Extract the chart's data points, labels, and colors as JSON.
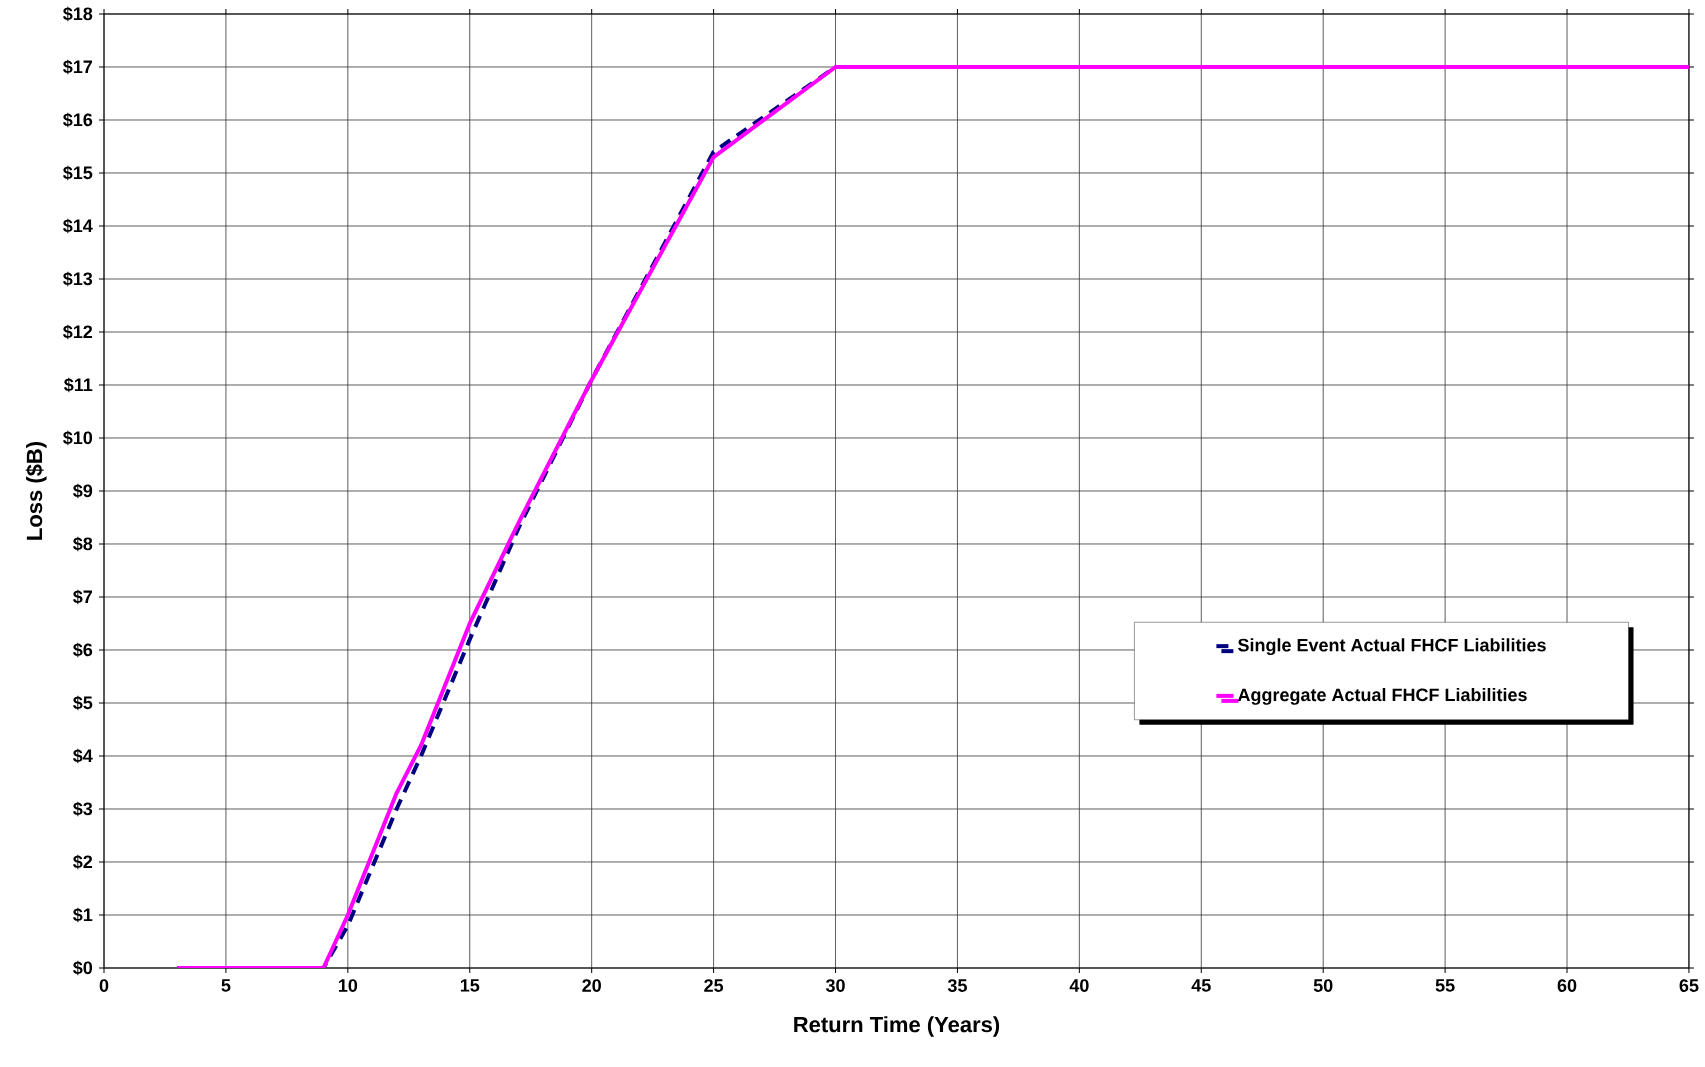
{
  "chart_data": {
    "type": "line",
    "xlabel": "Return Time (Years)",
    "ylabel": "Loss ($B)",
    "xlim": [
      0,
      65
    ],
    "xticks": [
      0,
      5,
      10,
      15,
      20,
      25,
      30,
      35,
      40,
      45,
      50,
      55,
      60,
      65
    ],
    "ylim": [
      0,
      18
    ],
    "yticks": [
      {
        "value": 0,
        "label": "$0"
      },
      {
        "value": 1,
        "label": "$1"
      },
      {
        "value": 2,
        "label": "$2"
      },
      {
        "value": 3,
        "label": "$3"
      },
      {
        "value": 4,
        "label": "$4"
      },
      {
        "value": 5,
        "label": "$5"
      },
      {
        "value": 6,
        "label": "$6"
      },
      {
        "value": 7,
        "label": "$7"
      },
      {
        "value": 8,
        "label": "$8"
      },
      {
        "value": 9,
        "label": "$9"
      },
      {
        "value": 10,
        "label": "$10"
      },
      {
        "value": 11,
        "label": "$11"
      },
      {
        "value": 12,
        "label": "$12"
      },
      {
        "value": 13,
        "label": "$13"
      },
      {
        "value": 14,
        "label": "$14"
      },
      {
        "value": 15,
        "label": "$15"
      },
      {
        "value": 16,
        "label": "$16"
      },
      {
        "value": 17,
        "label": "$17"
      },
      {
        "value": 18,
        "label": "$18"
      }
    ],
    "grid": true,
    "legend": "right",
    "series": [
      {
        "name": "Single Event Actual FHCF Liabilities",
        "color": "#000080",
        "line_style": "dashed",
        "x": [
          3,
          9,
          10,
          12,
          13,
          15,
          17,
          20,
          25,
          30,
          65
        ],
        "values": [
          0,
          0,
          0.8,
          3.0,
          4.0,
          6.2,
          8.3,
          11.1,
          15.4,
          17,
          17
        ]
      },
      {
        "name": "Aggregate Actual FHCF Liabilities",
        "color": "#ff00ff",
        "line_style": "solid",
        "x": [
          3,
          9,
          10,
          12,
          13,
          15,
          17,
          20,
          25,
          30,
          65
        ],
        "values": [
          0,
          0,
          1.0,
          3.3,
          4.2,
          6.5,
          8.4,
          11.1,
          15.3,
          17,
          17
        ]
      }
    ]
  }
}
